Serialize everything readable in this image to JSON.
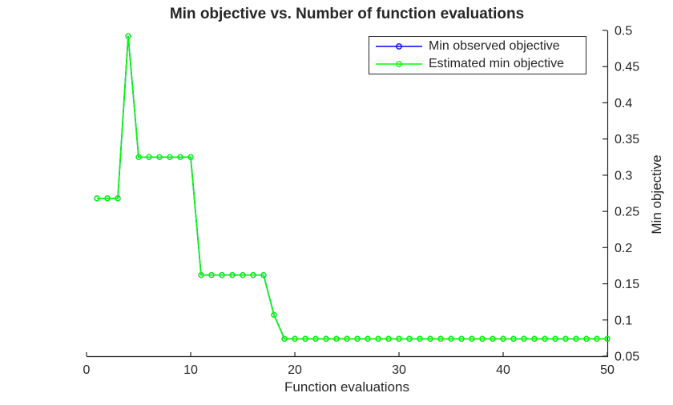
{
  "figure": {
    "background": "#FFFFFF"
  },
  "chart_data": {
    "type": "line",
    "title": "Min objective vs. Number of function evaluations",
    "xlabel": "Function evaluations",
    "ylabel": "Min objective",
    "xlim": [
      0,
      50
    ],
    "ylim": [
      0.05,
      0.5
    ],
    "xticks": [
      0,
      10,
      20,
      30,
      40,
      50
    ],
    "xtick_labels": [
      "0",
      "10",
      "20",
      "30",
      "40",
      "50"
    ],
    "yticks": [
      0.05,
      0.1,
      0.15,
      0.2,
      0.25,
      0.3,
      0.35,
      0.4,
      0.45,
      0.5
    ],
    "ytick_labels": [
      "0.05",
      "0.1",
      "0.15",
      "0.2",
      "0.25",
      "0.3",
      "0.35",
      "0.4",
      "0.45",
      "0.5"
    ],
    "y_axis_side": "right",
    "grid": false,
    "legend_position": "top-right-inside",
    "axis_color": "#262626",
    "text_color": "#262626",
    "x": [
      1,
      2,
      3,
      4,
      5,
      6,
      7,
      8,
      9,
      10,
      11,
      12,
      13,
      14,
      15,
      16,
      17,
      18,
      19,
      20,
      21,
      22,
      23,
      24,
      25,
      26,
      27,
      28,
      29,
      30,
      31,
      32,
      33,
      34,
      35,
      36,
      37,
      38,
      39,
      40,
      41,
      42,
      43,
      44,
      45,
      46,
      47,
      48,
      49,
      50
    ],
    "series": [
      {
        "name": "Min observed objective",
        "color": "#0000FF",
        "marker": "o",
        "values": [
          0.268,
          0.268,
          0.268,
          0.492,
          0.325,
          0.325,
          0.325,
          0.325,
          0.325,
          0.325,
          0.162,
          0.162,
          0.162,
          0.162,
          0.162,
          0.162,
          0.162,
          0.107,
          0.074,
          0.074,
          0.074,
          0.074,
          0.074,
          0.074,
          0.074,
          0.074,
          0.074,
          0.074,
          0.074,
          0.074,
          0.074,
          0.074,
          0.074,
          0.074,
          0.074,
          0.074,
          0.074,
          0.074,
          0.074,
          0.074,
          0.074,
          0.074,
          0.074,
          0.074,
          0.074,
          0.074,
          0.074,
          0.074,
          0.074,
          0.074
        ]
      },
      {
        "name": "Estimated min objective",
        "color": "#00FF00",
        "marker": "o",
        "values": [
          0.268,
          0.268,
          0.268,
          0.492,
          0.325,
          0.325,
          0.325,
          0.325,
          0.325,
          0.325,
          0.162,
          0.162,
          0.162,
          0.162,
          0.162,
          0.162,
          0.162,
          0.107,
          0.074,
          0.074,
          0.074,
          0.074,
          0.074,
          0.074,
          0.074,
          0.074,
          0.074,
          0.074,
          0.074,
          0.074,
          0.074,
          0.074,
          0.074,
          0.074,
          0.074,
          0.074,
          0.074,
          0.074,
          0.074,
          0.074,
          0.074,
          0.074,
          0.074,
          0.074,
          0.074,
          0.074,
          0.074,
          0.074,
          0.074,
          0.074
        ]
      }
    ]
  }
}
